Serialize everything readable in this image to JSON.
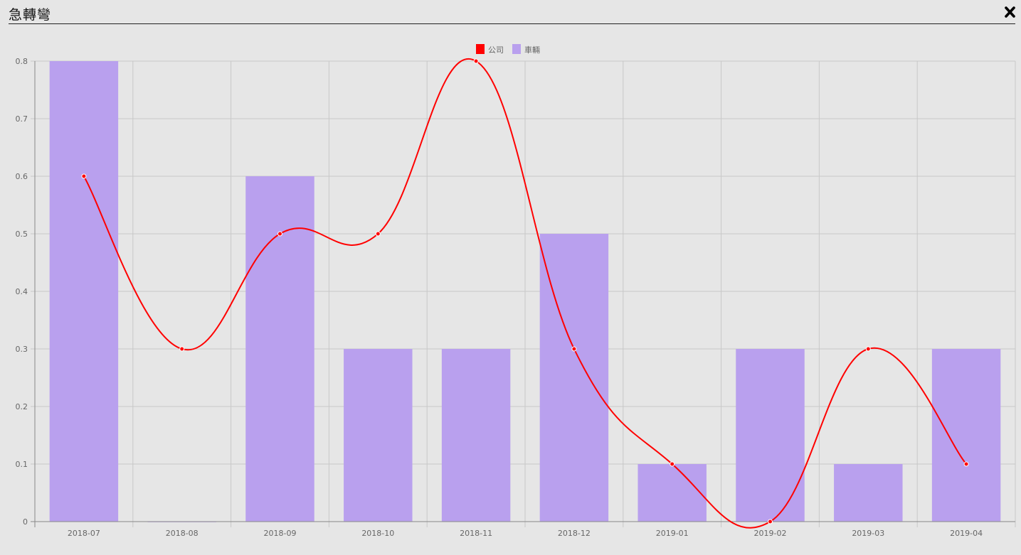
{
  "window": {
    "title": "急轉彎",
    "close_icon": "close-icon"
  },
  "chart_data": {
    "type": "bar",
    "categories": [
      "2018-07",
      "2018-08",
      "2018-09",
      "2018-10",
      "2018-11",
      "2018-12",
      "2019-01",
      "2019-02",
      "2019-03",
      "2019-04"
    ],
    "series": [
      {
        "name": "公司",
        "type": "line",
        "color": "#ff0000",
        "values": [
          0.6,
          0.3,
          0.5,
          0.5,
          0.8,
          0.3,
          0.1,
          0,
          0.3,
          0.1
        ]
      },
      {
        "name": "車輛",
        "type": "bar",
        "color": "#b9a0ee",
        "values": [
          0.8,
          0,
          0.6,
          0.3,
          0.3,
          0.5,
          0.1,
          0.3,
          0.1,
          0.3
        ]
      }
    ],
    "yticks": [
      "0",
      "0.1",
      "0.2",
      "0.3",
      "0.4",
      "0.5",
      "0.6",
      "0.7",
      "0.8"
    ],
    "ylim": [
      0,
      0.8
    ],
    "grid": true,
    "legend_position": "top-center"
  }
}
